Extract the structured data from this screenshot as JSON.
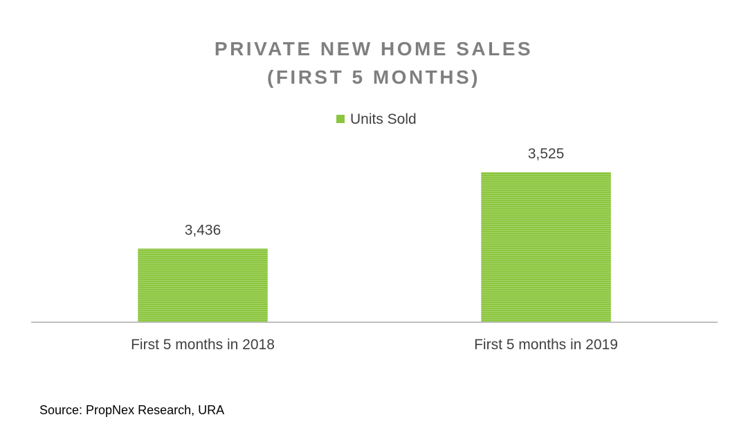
{
  "colors": {
    "bar": "#8cc63f",
    "bar_stripe": "#a6d46a",
    "axis": "#bfbfbf",
    "title": "#7f7f7f",
    "text": "#404040"
  },
  "chart_data": {
    "type": "bar",
    "title_lines": [
      "PRIVATE NEW HOME SALES",
      "(FIRST 5 MONTHS)"
    ],
    "title": "PRIVATE NEW HOME SALES (FIRST 5 MONTHS)",
    "categories": [
      "First 5 months in 2018",
      "First 5 months in 2019"
    ],
    "series": [
      {
        "name": "Units Sold",
        "values": [
          3436,
          3525
        ],
        "value_labels": [
          "3,436",
          "3,525"
        ]
      }
    ],
    "xlabel": "",
    "ylabel": "",
    "ylim": [
      3350,
      3550
    ],
    "grid": false,
    "legend_position": "top-center"
  },
  "footer": {
    "source": "Source: PropNex Research, URA"
  }
}
